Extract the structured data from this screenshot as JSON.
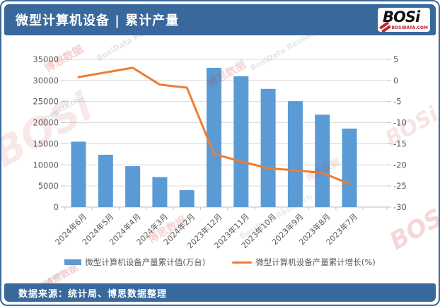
{
  "header": {
    "title": "微型计算机设备 | 累计产量",
    "logo": {
      "brand": "BOSi",
      "domain": "BOSIDATA.COM"
    }
  },
  "footer": {
    "source": "数据来源：统计局、博思数据整理"
  },
  "colors": {
    "bar": "#5B9BD5",
    "line": "#ED7D31",
    "band": "#38689C",
    "grid": "#D9D9D9",
    "axis_line": "#BFBFBF",
    "axis_text": "#595959",
    "watermark_red": "#CC2A2A",
    "watermark_gray": "#8A9AA8"
  },
  "watermark": {
    "texts": [
      "BOSi",
      "博思数据",
      "BosiData Research",
      "BOSIDATA.COM",
      "数据"
    ]
  },
  "chart_data": {
    "type": "bar",
    "subtype": "combo-bar-line",
    "title": "微型计算机设备 | 累计产量",
    "categories": [
      "2024年6月",
      "2024年5月",
      "2024年4月",
      "2024年3月",
      "2024年2月",
      "2023年12月",
      "2023年11月",
      "2023年10月",
      "2023年9月",
      "2023年8月",
      "2023年7月"
    ],
    "series": [
      {
        "name": "微型计算机设备产量累计值(万台)",
        "type": "bar",
        "axis": "left",
        "color": "#5B9BD5",
        "values": [
          15500,
          12400,
          9700,
          7100,
          4000,
          33000,
          31000,
          28000,
          25100,
          21900,
          18600
        ]
      },
      {
        "name": "微型计算机设备产量累计增长(%)",
        "type": "line",
        "axis": "right",
        "color": "#ED7D31",
        "values": [
          0.8,
          1.9,
          3.0,
          -1.0,
          -1.7,
          -17.4,
          -19.2,
          -20.8,
          -21.3,
          -21.9,
          -24.5
        ]
      }
    ],
    "left_axis": {
      "min": 0,
      "max": 35000,
      "step": 5000,
      "ticks": [
        "0",
        "5000",
        "10000",
        "15000",
        "20000",
        "25000",
        "30000",
        "35000"
      ]
    },
    "right_axis": {
      "min": -30,
      "max": 5,
      "step": 5,
      "ticks": [
        "5",
        "0",
        "-5",
        "-10",
        "-15",
        "-20",
        "-25",
        "-30"
      ]
    },
    "grid": true,
    "legend_position": "bottom"
  }
}
